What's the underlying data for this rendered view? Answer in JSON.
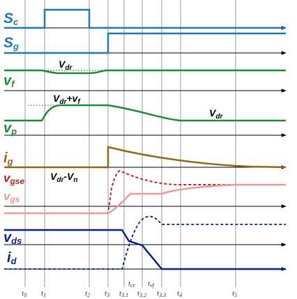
{
  "colors": {
    "blue": "#1f77b4",
    "green": "#1f8a3a",
    "olive": "#8b6a1a",
    "red": "#c0202a",
    "pink": "#e89a9a",
    "navy": "#0b1f8f",
    "axis": "#000000",
    "grid": "#9a9a9a"
  },
  "signals": {
    "sc": {
      "main": "S",
      "sub": "c"
    },
    "sg": {
      "main": "S",
      "sub": "g"
    },
    "vf": {
      "main": "v",
      "sub": "f"
    },
    "vp": {
      "main": "v",
      "sub": "p"
    },
    "ig": {
      "main": "i",
      "sub": "g"
    },
    "vgse": {
      "main": "v",
      "sub": "gse"
    },
    "vgs": {
      "main": "v",
      "sub": "gs"
    },
    "vds": {
      "main": "v",
      "sub": "ds"
    },
    "id": {
      "main": "i",
      "sub": "d"
    }
  },
  "annotations": {
    "vdr_vf": {
      "main": "V",
      "sub": "dr"
    },
    "vdr_plus_vf": {
      "main": "V",
      "sub1": "dr",
      "mid": "+v",
      "sub2": "f"
    },
    "vdr_vp": {
      "main": "V",
      "sub": "dr"
    },
    "vdr_minus_vn": {
      "main": "V",
      "sub1": "dr",
      "mid": "-V",
      "sub2": "n"
    }
  },
  "time_ticks": [
    {
      "main": "t",
      "sub": "0"
    },
    {
      "main": "t",
      "sub": "1"
    },
    {
      "main": "t",
      "sub": "2"
    },
    {
      "main": "t",
      "sub": "3"
    },
    {
      "main": "t",
      "sub": "3.1"
    },
    {
      "main": "t",
      "sub": "3.2"
    },
    {
      "main": "t",
      "sub": "3.3"
    },
    {
      "main": "t",
      "sub": "4"
    },
    {
      "main": "t",
      "sub": "5"
    }
  ],
  "interval_labels": [
    {
      "main": "t",
      "sub": "cr"
    },
    {
      "main": "t",
      "sub": "vf"
    }
  ]
}
